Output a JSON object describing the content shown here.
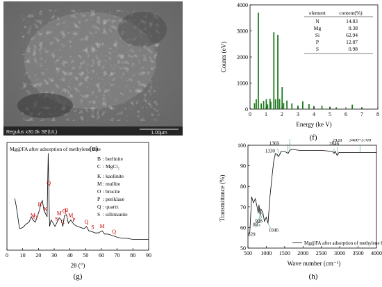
{
  "panels": {
    "e": {
      "caption": "(e)",
      "scale_text": "1.00μm",
      "footer_text": "Regulus x30.0k SE(UL)"
    },
    "f": {
      "caption": "(f)",
      "ylabel": "Counts (eV)",
      "xlabel": "Energy (ke V)",
      "y_ticks": [
        "0",
        "1000",
        "2000",
        "3000",
        "4000"
      ],
      "x_ticks": [
        "0",
        "1",
        "2",
        "3",
        "4",
        "5",
        "6",
        "7",
        "8"
      ],
      "table_headers": [
        "element",
        "content(%)"
      ],
      "table_rows": [
        {
          "element": "N",
          "content": "14.83"
        },
        {
          "element": "Mg",
          "content": "8.38"
        },
        {
          "element": "Si",
          "content": "62.94"
        },
        {
          "element": "P",
          "content": "12.87"
        },
        {
          "element": "S",
          "content": "0.98"
        }
      ]
    },
    "g": {
      "caption": "(g)",
      "title": "Mg@FA after adsorption of methylene blue",
      "xlabel": "2θ (°)",
      "x_ticks": [
        "0",
        "10",
        "20",
        "30",
        "40",
        "50",
        "60",
        "70",
        "80",
        "90"
      ],
      "legend": [
        {
          "key": "B",
          "text": ": berlinite"
        },
        {
          "key": "C",
          "text": ": MgCl₂"
        },
        {
          "key": "K",
          "text": ": kaolinite"
        },
        {
          "key": "M",
          "text": ": mullite"
        },
        {
          "key": "O",
          "text": ": brucite"
        },
        {
          "key": "P",
          "text": ": periklase"
        },
        {
          "key": "Q",
          "text": ": quartz"
        },
        {
          "key": "S",
          "text": ": sillimanite"
        }
      ]
    },
    "h": {
      "caption": "(h)",
      "ylabel": "Transmittance (%)",
      "xlabel": "Wave number (cm⁻¹)",
      "legend": "Mg@FA after adsorption of methylene blue",
      "y_ticks": [
        "50",
        "60",
        "70",
        "80",
        "90",
        "100"
      ],
      "x_ticks": [
        "500",
        "1000",
        "1500",
        "2000",
        "2500",
        "3000",
        "3500",
        "4000"
      ]
    }
  },
  "colors": {
    "eds_bar": "#1f7a1f",
    "xrd_line": "#000000",
    "xrd_peak_label": "#cc0000",
    "ftir_line": "#000000",
    "ftir_annotation": "#2e8b57"
  },
  "chart_data": [
    {
      "panel": "f",
      "type": "bar",
      "xlabel": "Energy (ke V)",
      "ylabel": "Counts (eV)",
      "xlim": [
        0,
        8
      ],
      "ylim": [
        0,
        4000
      ],
      "x": [
        0.28,
        0.39,
        0.52,
        0.7,
        0.85,
        1.02,
        1.1,
        1.25,
        1.3,
        1.49,
        1.6,
        1.74,
        1.85,
        2.01,
        2.1,
        2.31,
        2.62,
        3.0,
        3.3,
        3.69,
        4.0,
        4.5,
        5.0,
        5.4,
        6.4,
        7.0
      ],
      "values": [
        230,
        380,
        3700,
        220,
        320,
        380,
        180,
        400,
        280,
        2950,
        380,
        2850,
        390,
        850,
        230,
        330,
        220,
        140,
        300,
        190,
        120,
        130,
        90,
        70,
        170,
        60
      ]
    },
    {
      "panel": "g",
      "type": "line",
      "xlabel": "2θ (°)",
      "xlim": [
        0,
        90
      ],
      "x": [
        5,
        6,
        8,
        10,
        12,
        14,
        15.5,
        16.5,
        18,
        19.5,
        20.8,
        21.5,
        22.5,
        23.5,
        24.5,
        25.5,
        26.2,
        26.6,
        27.1,
        28,
        29,
        30.5,
        31.5,
        33.2,
        34.5,
        35.5,
        36.5,
        37.8,
        39,
        40.5,
        41.5,
        42.5,
        43.5,
        45,
        47,
        49,
        50.5,
        52,
        54.5,
        56,
        58,
        60.5,
        62,
        64,
        66,
        68,
        70,
        73,
        76,
        80,
        84,
        88,
        90
      ],
      "values": [
        48,
        40,
        20,
        21,
        24,
        26,
        31,
        28,
        26,
        32,
        38,
        43,
        46,
        37,
        34,
        31,
        90,
        58,
        22,
        28,
        26,
        22,
        25,
        30,
        28,
        22,
        32,
        33,
        25,
        28,
        26,
        24,
        23,
        22,
        21,
        20,
        22,
        18,
        17,
        16,
        16,
        18,
        15,
        15,
        14,
        13,
        12,
        11,
        11,
        10,
        10,
        10,
        10
      ],
      "peak_labels": [
        {
          "label": "Q",
          "x": 26.6
        },
        {
          "label": "B",
          "x": 20.8
        },
        {
          "label": "M",
          "x": 16.5
        },
        {
          "label": "O",
          "x": 18
        },
        {
          "label": "K",
          "x": 24.5
        },
        {
          "label": "S",
          "x": 31.5
        },
        {
          "label": "M",
          "x": 33.2
        },
        {
          "label": "C",
          "x": 35.5
        },
        {
          "label": "Q",
          "x": 36.5
        },
        {
          "label": "B",
          "x": 37.8
        },
        {
          "label": "M",
          "x": 40.5
        },
        {
          "label": "P",
          "x": 42.5
        },
        {
          "label": "Q",
          "x": 50.5
        },
        {
          "label": "S",
          "x": 54.5
        },
        {
          "label": "M",
          "x": 60.5
        },
        {
          "label": "Q",
          "x": 68
        }
      ]
    },
    {
      "panel": "h",
      "type": "line",
      "xlabel": "Wave number (cm⁻¹)",
      "ylabel": "Transmittance (%)",
      "xlim": [
        500,
        4000
      ],
      "ylim": [
        50,
        100
      ],
      "x": [
        550,
        600,
        650,
        700,
        750,
        780,
        800,
        829,
        850,
        885,
        908,
        950,
        1000,
        1046,
        1100,
        1150,
        1200,
        1250,
        1300,
        1330,
        1369,
        1400,
        1500,
        1595,
        1637,
        1700,
        1900,
        2200,
        2500,
        2800,
        2846,
        2880,
        2928,
        2980,
        3200,
        3400,
        3600,
        3700,
        3850,
        4000
      ],
      "values": [
        57,
        75,
        72,
        74,
        70,
        67,
        71,
        66,
        69,
        68,
        67,
        63,
        65,
        62,
        75,
        84,
        92,
        96,
        95.5,
        94.5,
        95.5,
        97,
        97,
        96,
        97.5,
        98,
        97.5,
        97.5,
        97.5,
        97,
        96,
        97,
        95,
        96.5,
        96.5,
        96.5,
        96.5,
        96.5,
        96.5,
        96.5
      ],
      "annotations": [
        {
          "label": "1637",
          "x": 1637
        },
        {
          "label": "1595",
          "x": 1595
        },
        {
          "label": "1369",
          "x": 1369
        },
        {
          "label": "1330",
          "x": 1330
        },
        {
          "label": "2928",
          "x": 2928
        },
        {
          "label": "2846",
          "x": 2846
        },
        {
          "label": "3400~3700",
          "x": 3550
        },
        {
          "label": "1046",
          "x": 1046
        },
        {
          "label": "908",
          "x": 908
        },
        {
          "label": "885",
          "x": 885
        },
        {
          "label": "829",
          "x": 829
        }
      ]
    }
  ]
}
